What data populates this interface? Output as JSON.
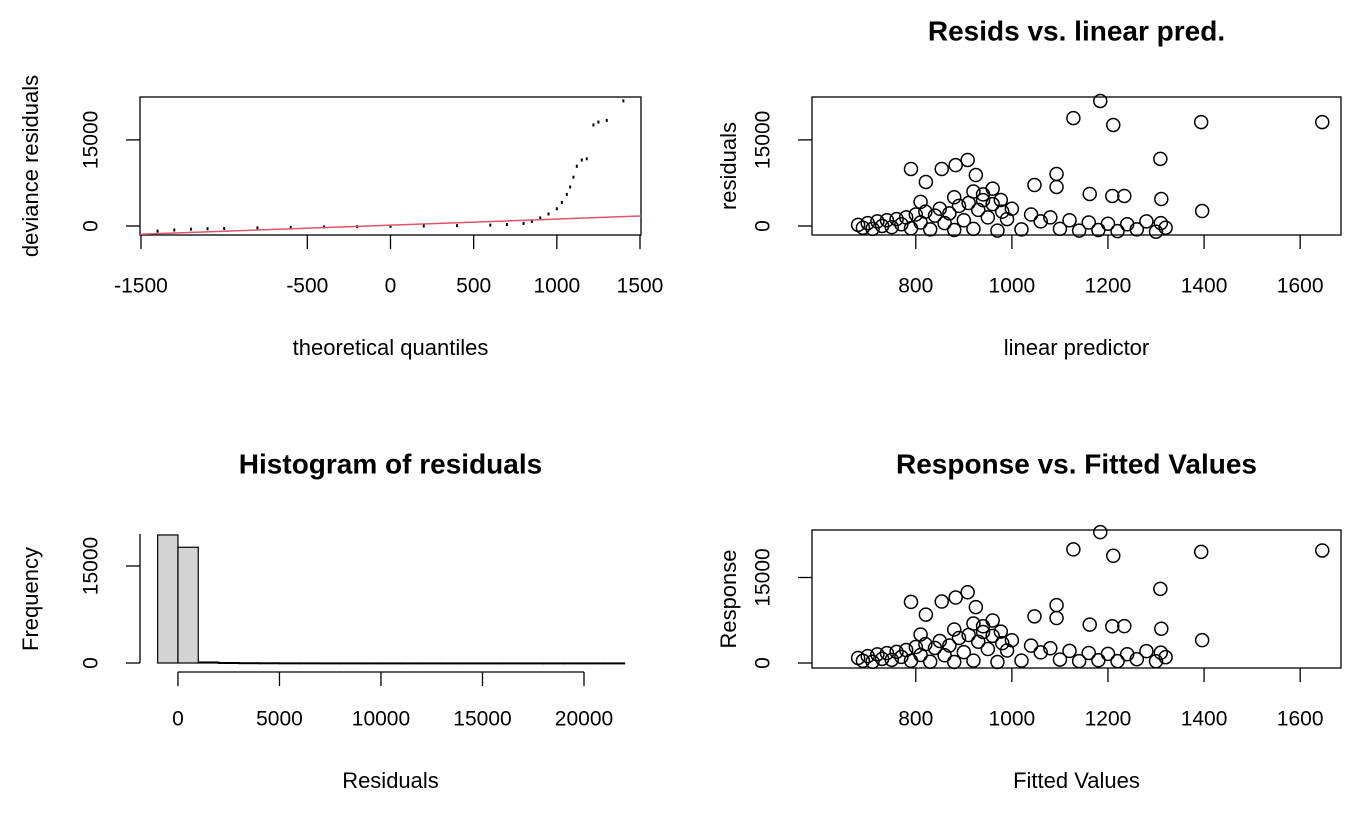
{
  "chart_data": [
    {
      "type": "scatter",
      "marker": "dot",
      "frame": true,
      "xlabel": "theoretical quantiles",
      "ylabel": "deviance residuals",
      "x": [
        -1400,
        -1300,
        -1200,
        -1100,
        -1000,
        -800,
        -600,
        -400,
        -200,
        0,
        200,
        400,
        600,
        700,
        800,
        850,
        900,
        950,
        1000,
        1030,
        1060,
        1080,
        1100,
        1120,
        1150,
        1180,
        1220,
        1250,
        1300,
        1400
      ],
      "values": [
        -900,
        -700,
        -560,
        -480,
        -420,
        -330,
        -250,
        -180,
        -110,
        -50,
        0,
        60,
        150,
        250,
        450,
        800,
        1400,
        2100,
        3000,
        4100,
        5500,
        6800,
        8500,
        10400,
        11500,
        11700,
        17600,
        18100,
        18400,
        21800
      ],
      "color": "#000000",
      "reference_line": {
        "x": [
          -1506,
          1506
        ],
        "values": [
          -1450,
          1740
        ],
        "color": "#DF536B"
      },
      "xlim": [
        -1506,
        1506
      ],
      "ylim": [
        -1570,
        22470
      ],
      "xticks": [
        -1500,
        -500,
        0,
        500,
        1000,
        1500
      ],
      "yticks": [
        0,
        15000
      ]
    },
    {
      "type": "scatter",
      "marker": "circle",
      "frame": true,
      "title": "Resids vs. linear pred.",
      "xlabel": "linear predictor",
      "ylabel": "residuals",
      "x": [
        680,
        690,
        700,
        710,
        720,
        730,
        740,
        750,
        760,
        770,
        780,
        790,
        800,
        810,
        820,
        830,
        840,
        850,
        860,
        870,
        880,
        890,
        900,
        910,
        920,
        930,
        940,
        950,
        960,
        970,
        980,
        990,
        1000,
        1020,
        1040,
        1060,
        1080,
        1100,
        1120,
        1140,
        1160,
        1180,
        1200,
        1220,
        1240,
        1260,
        1280,
        1300,
        1310,
        1320,
        810,
        880,
        920,
        940,
        960,
        1184,
        1128,
        1211,
        1394,
        1646,
        908,
        854,
        1309,
        1093,
        1093,
        1162,
        1209,
        1234,
        1311,
        1396,
        790,
        883,
        821,
        925,
        977,
        1047
      ],
      "values": [
        200,
        -300,
        500,
        -500,
        800,
        0,
        1000,
        -200,
        1200,
        300,
        1500,
        -400,
        2000,
        600,
        2500,
        -600,
        1800,
        3000,
        500,
        2200,
        -700,
        3500,
        1000,
        4000,
        -500,
        2800,
        4500,
        1500,
        3800,
        -800,
        2500,
        1200,
        3000,
        -600,
        2000,
        800,
        1500,
        -500,
        1000,
        -800,
        600,
        -700,
        400,
        -900,
        300,
        -600,
        800,
        -1000,
        500,
        -300,
        4200,
        5000,
        6000,
        5500,
        6500,
        21775,
        18800,
        17600,
        18100,
        18100,
        11500,
        9930,
        11700,
        9060,
        6800,
        5580,
        5230,
        5230,
        4700,
        2610,
        9930,
        10600,
        7670,
        8880,
        4530,
        7140
      ],
      "color": "#000000",
      "xlim": [
        584,
        1685
      ],
      "ylim": [
        -1570,
        22470
      ],
      "xticks": [
        800,
        1000,
        1200,
        1400,
        1600
      ],
      "yticks": [
        0,
        15000
      ]
    },
    {
      "type": "histogram",
      "frame": false,
      "title": "Histogram of residuals",
      "xlabel": "Residuals",
      "ylabel": "Frequency",
      "bins": [
        -1000,
        0,
        1000,
        2000,
        3000,
        4000,
        5000,
        6000,
        7000,
        8000,
        9000,
        10000,
        11000,
        12000,
        13000,
        14000,
        15000,
        16000,
        17000,
        18000,
        19000,
        20000,
        21000,
        22000
      ],
      "values": [
        19800,
        17900,
        150,
        60,
        30,
        20,
        10,
        8,
        5,
        3,
        2,
        1,
        1,
        1,
        0,
        0,
        0,
        1,
        0,
        0,
        1,
        1,
        0
      ],
      "color": "#D3D3D3",
      "xlim": [
        -1870,
        22808
      ],
      "ylim": [
        -773,
        20567
      ],
      "xticks": [
        0,
        5000,
        10000,
        15000,
        20000
      ],
      "yticks": [
        0,
        15000
      ]
    },
    {
      "type": "scatter",
      "marker": "circle",
      "frame": true,
      "title": "Response vs. Fitted Values",
      "xlabel": "Fitted Values",
      "ylabel": "Response",
      "x": [
        680,
        690,
        700,
        710,
        720,
        730,
        740,
        750,
        760,
        770,
        780,
        790,
        800,
        810,
        820,
        830,
        840,
        850,
        860,
        870,
        880,
        890,
        900,
        910,
        920,
        930,
        940,
        950,
        960,
        970,
        980,
        990,
        1000,
        1020,
        1040,
        1060,
        1080,
        1100,
        1120,
        1140,
        1160,
        1180,
        1200,
        1220,
        1240,
        1260,
        1280,
        1300,
        1310,
        1320,
        810,
        880,
        920,
        940,
        960,
        1184,
        1128,
        1211,
        1394,
        1646,
        908,
        854,
        1309,
        1093,
        1093,
        1162,
        1209,
        1234,
        1311,
        1396,
        790,
        883,
        821,
        925,
        977,
        1047
      ],
      "values": [
        880,
        390,
        1200,
        210,
        1520,
        730,
        1740,
        550,
        1960,
        1070,
        2280,
        390,
        2800,
        1410,
        3320,
        230,
        2640,
        3850,
        1360,
        3070,
        180,
        4390,
        1900,
        4910,
        420,
        3730,
        5440,
        2450,
        4760,
        170,
        3480,
        2190,
        4000,
        420,
        3040,
        1860,
        2580,
        600,
        2120,
        340,
        1760,
        480,
        1600,
        320,
        1540,
        660,
        2080,
        300,
        1810,
        1020,
        5010,
        5880,
        6920,
        6440,
        7460,
        22959,
        19928,
        18811,
        19494,
        19746,
        12408,
        10784,
        13009,
        10153,
        7893,
        6742,
        6439,
        6464,
        6011,
        4006,
        10720,
        11483,
        8491,
        9805,
        5507,
        8187
      ],
      "color": "#000000",
      "xlim": [
        584,
        1685
      ],
      "ylim": [
        -877,
        23333
      ],
      "xticks": [
        800,
        1000,
        1200,
        1400,
        1600
      ],
      "yticks": [
        0,
        15000
      ]
    }
  ]
}
